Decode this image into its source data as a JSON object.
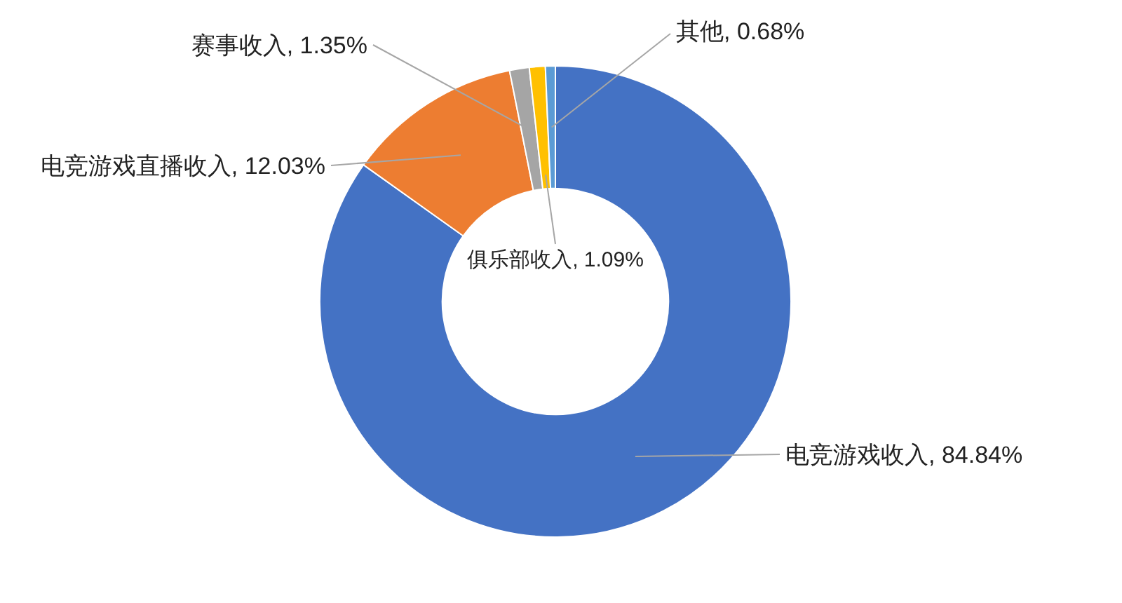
{
  "chart_data": {
    "type": "donut",
    "categories": [
      "电竞游戏收入",
      "电竞游戏直播收入",
      "赛事收入",
      "俱乐部收入",
      "其他"
    ],
    "values": [
      84.84,
      12.03,
      1.35,
      1.09,
      0.68
    ],
    "value_labels": [
      "84.84%",
      "12.03%",
      "1.35%",
      "1.09%",
      "0.68%"
    ],
    "colors": [
      "#4472c4",
      "#ed7d31",
      "#a5a5a5",
      "#ffc000",
      "#5b9bd5"
    ]
  }
}
